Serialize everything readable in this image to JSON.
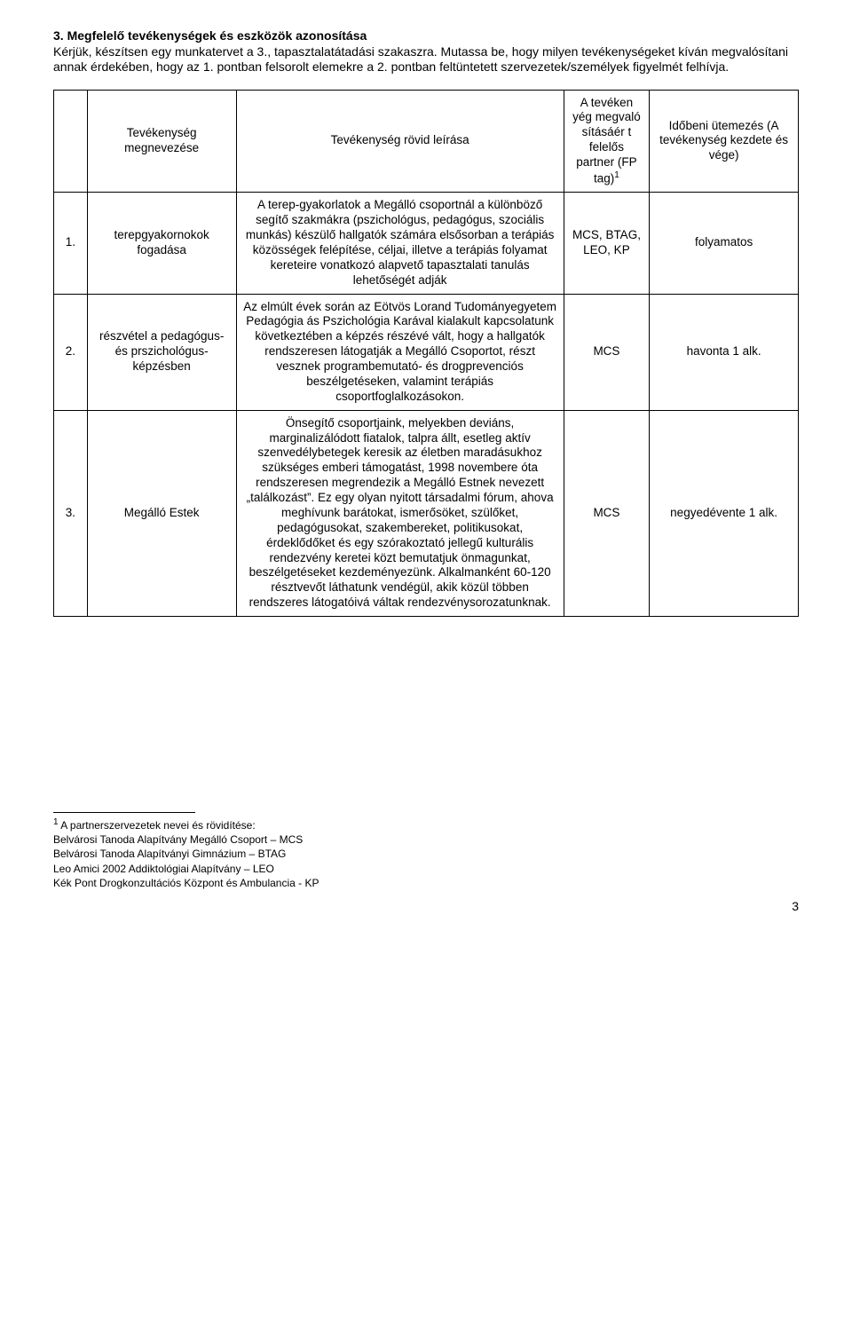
{
  "section": {
    "number": "3.",
    "title": "Megfelelő tevékenységek és eszközök azonosítása",
    "intro": "Kérjük, készítsen egy munkatervet a 3., tapasztalatátadási szakaszra. Mutassa be, hogy milyen tevékenységeket kíván megvalósítani annak érdekében, hogy az 1. pontban felsorolt elemekre a 2. pontban feltüntetett szervezetek/személyek figyelmét felhívja."
  },
  "table": {
    "headers": {
      "col1": "",
      "col2": "Tevékenység megnevezése",
      "col3": "Tevékenység rövid leírása",
      "col4": "A tevéken yég megvaló sításáér t felelős partner (FP tag)",
      "col4_sup": "1",
      "col5": "Időbeni ütemezés (A tevékenység kezdete és vége)"
    },
    "rows": [
      {
        "num": "1.",
        "name": "terepgyakornokok fogadása",
        "desc": "A terep-gyakorlatok a Megálló csoportnál a különböző segítő szakmákra (pszichológus, pedagógus, szociális munkás) készülő hallgatók számára elsősorban a terápiás közösségek felépítése, céljai, illetve a terápiás folyamat kereteire vonatkozó alapvető tapasztalati tanulás lehetőségét adják",
        "partner": "MCS, BTAG, LEO, KP",
        "timing": "folyamatos"
      },
      {
        "num": "2.",
        "name": "részvétel a pedagógus- és prszichológus-képzésben",
        "desc": "Az elmúlt évek során az Eötvös Lorand Tudományegyetem Pedagógia ás Pszichológia Karával kialakult kapcsolatunk következtében a képzés részévé vált, hogy a hallgatók rendszeresen látogatják a Megálló Csoportot, részt vesznek programbemutató- és drogprevenciós beszélgetéseken, valamint terápiás csoportfoglalkozásokon.",
        "partner": "MCS",
        "timing": "havonta 1 alk."
      },
      {
        "num": "3.",
        "name": "Megálló Estek",
        "desc": "Önsegítő csoportjaink, melyekben deviáns, marginalizálódott fiatalok, talpra állt, esetleg aktív szenvedélybetegek keresik az életben maradásukhoz szükséges emberi támogatást, 1998 novembere óta rendszeresen megrendezik a Megálló Estnek nevezett „találkozást”. Ez egy olyan nyitott társadalmi fórum, ahova meghívunk barátokat, ismerősöket, szülőket, pedagógusokat, szakembereket, politikusokat, érdeklődőket és egy szórakoztató jellegű kulturális rendezvény keretei közt bemutatjuk önmagunkat, beszélgetéseket kezdeményezünk. Alkalmanként 60-120 résztvevőt láthatunk vendégül, akik közül többen rendszeres látogatóivá váltak rendezvénysorozatunknak.",
        "partner": "MCS",
        "timing": "negyedévente 1 alk."
      }
    ]
  },
  "footnote": {
    "lead": "A partnerszervezetek nevei és rövidítése:",
    "lines": [
      "Belvárosi Tanoda Alapítvány Megálló Csoport – MCS",
      "Belvárosi Tanoda Alapítványi Gimnázium – BTAG",
      "Leo Amici 2002 Addiktológiai Alapítvány – LEO",
      "Kék Pont Drogkonzultációs Központ és Ambulancia - KP"
    ]
  },
  "page_number": "3"
}
